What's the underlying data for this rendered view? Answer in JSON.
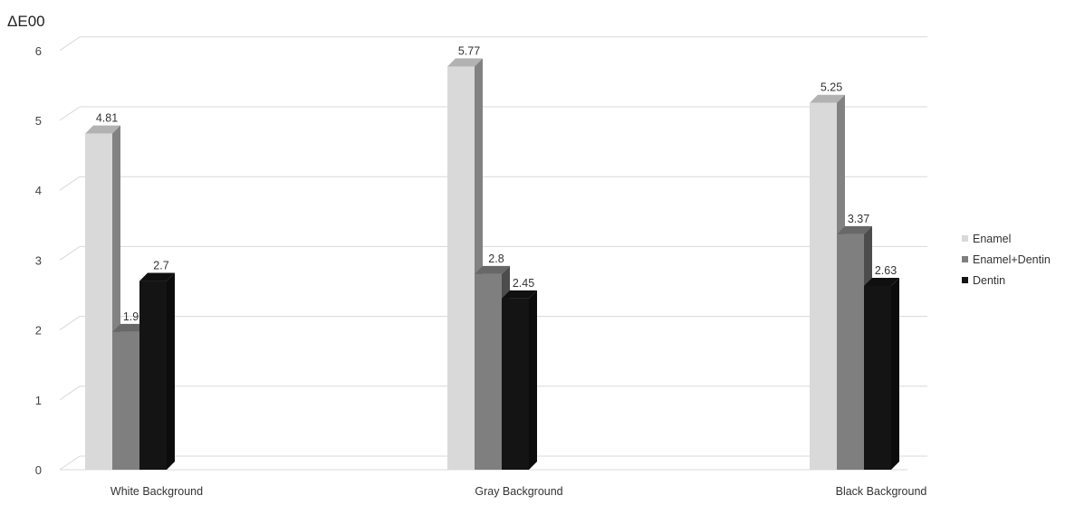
{
  "chart_data": {
    "type": "bar",
    "title": "",
    "xlabel": "",
    "ylabel": "ΔE00",
    "ylim": [
      0,
      6
    ],
    "yticks": [
      "0",
      "1",
      "2",
      "3",
      "4",
      "5",
      "6"
    ],
    "grid": true,
    "legend_position": "right",
    "categories": [
      "White Background",
      "Gray Background",
      "Black Background"
    ],
    "series": [
      {
        "name": "Enamel",
        "color": "#d9d9d9",
        "values": [
          4.81,
          5.77,
          5.25
        ],
        "labels": [
          "4.81",
          "5.77",
          "5.25"
        ]
      },
      {
        "name": "Enamel+Dentin",
        "color": "#7f7f7f",
        "values": [
          1.97,
          2.8,
          3.37
        ],
        "labels": [
          "1.97",
          "2.8",
          "3.37"
        ]
      },
      {
        "name": "Dentin",
        "color": "#141414",
        "values": [
          2.7,
          2.45,
          2.63
        ],
        "labels": [
          "2.7",
          "2.45",
          "2.63"
        ]
      }
    ]
  }
}
